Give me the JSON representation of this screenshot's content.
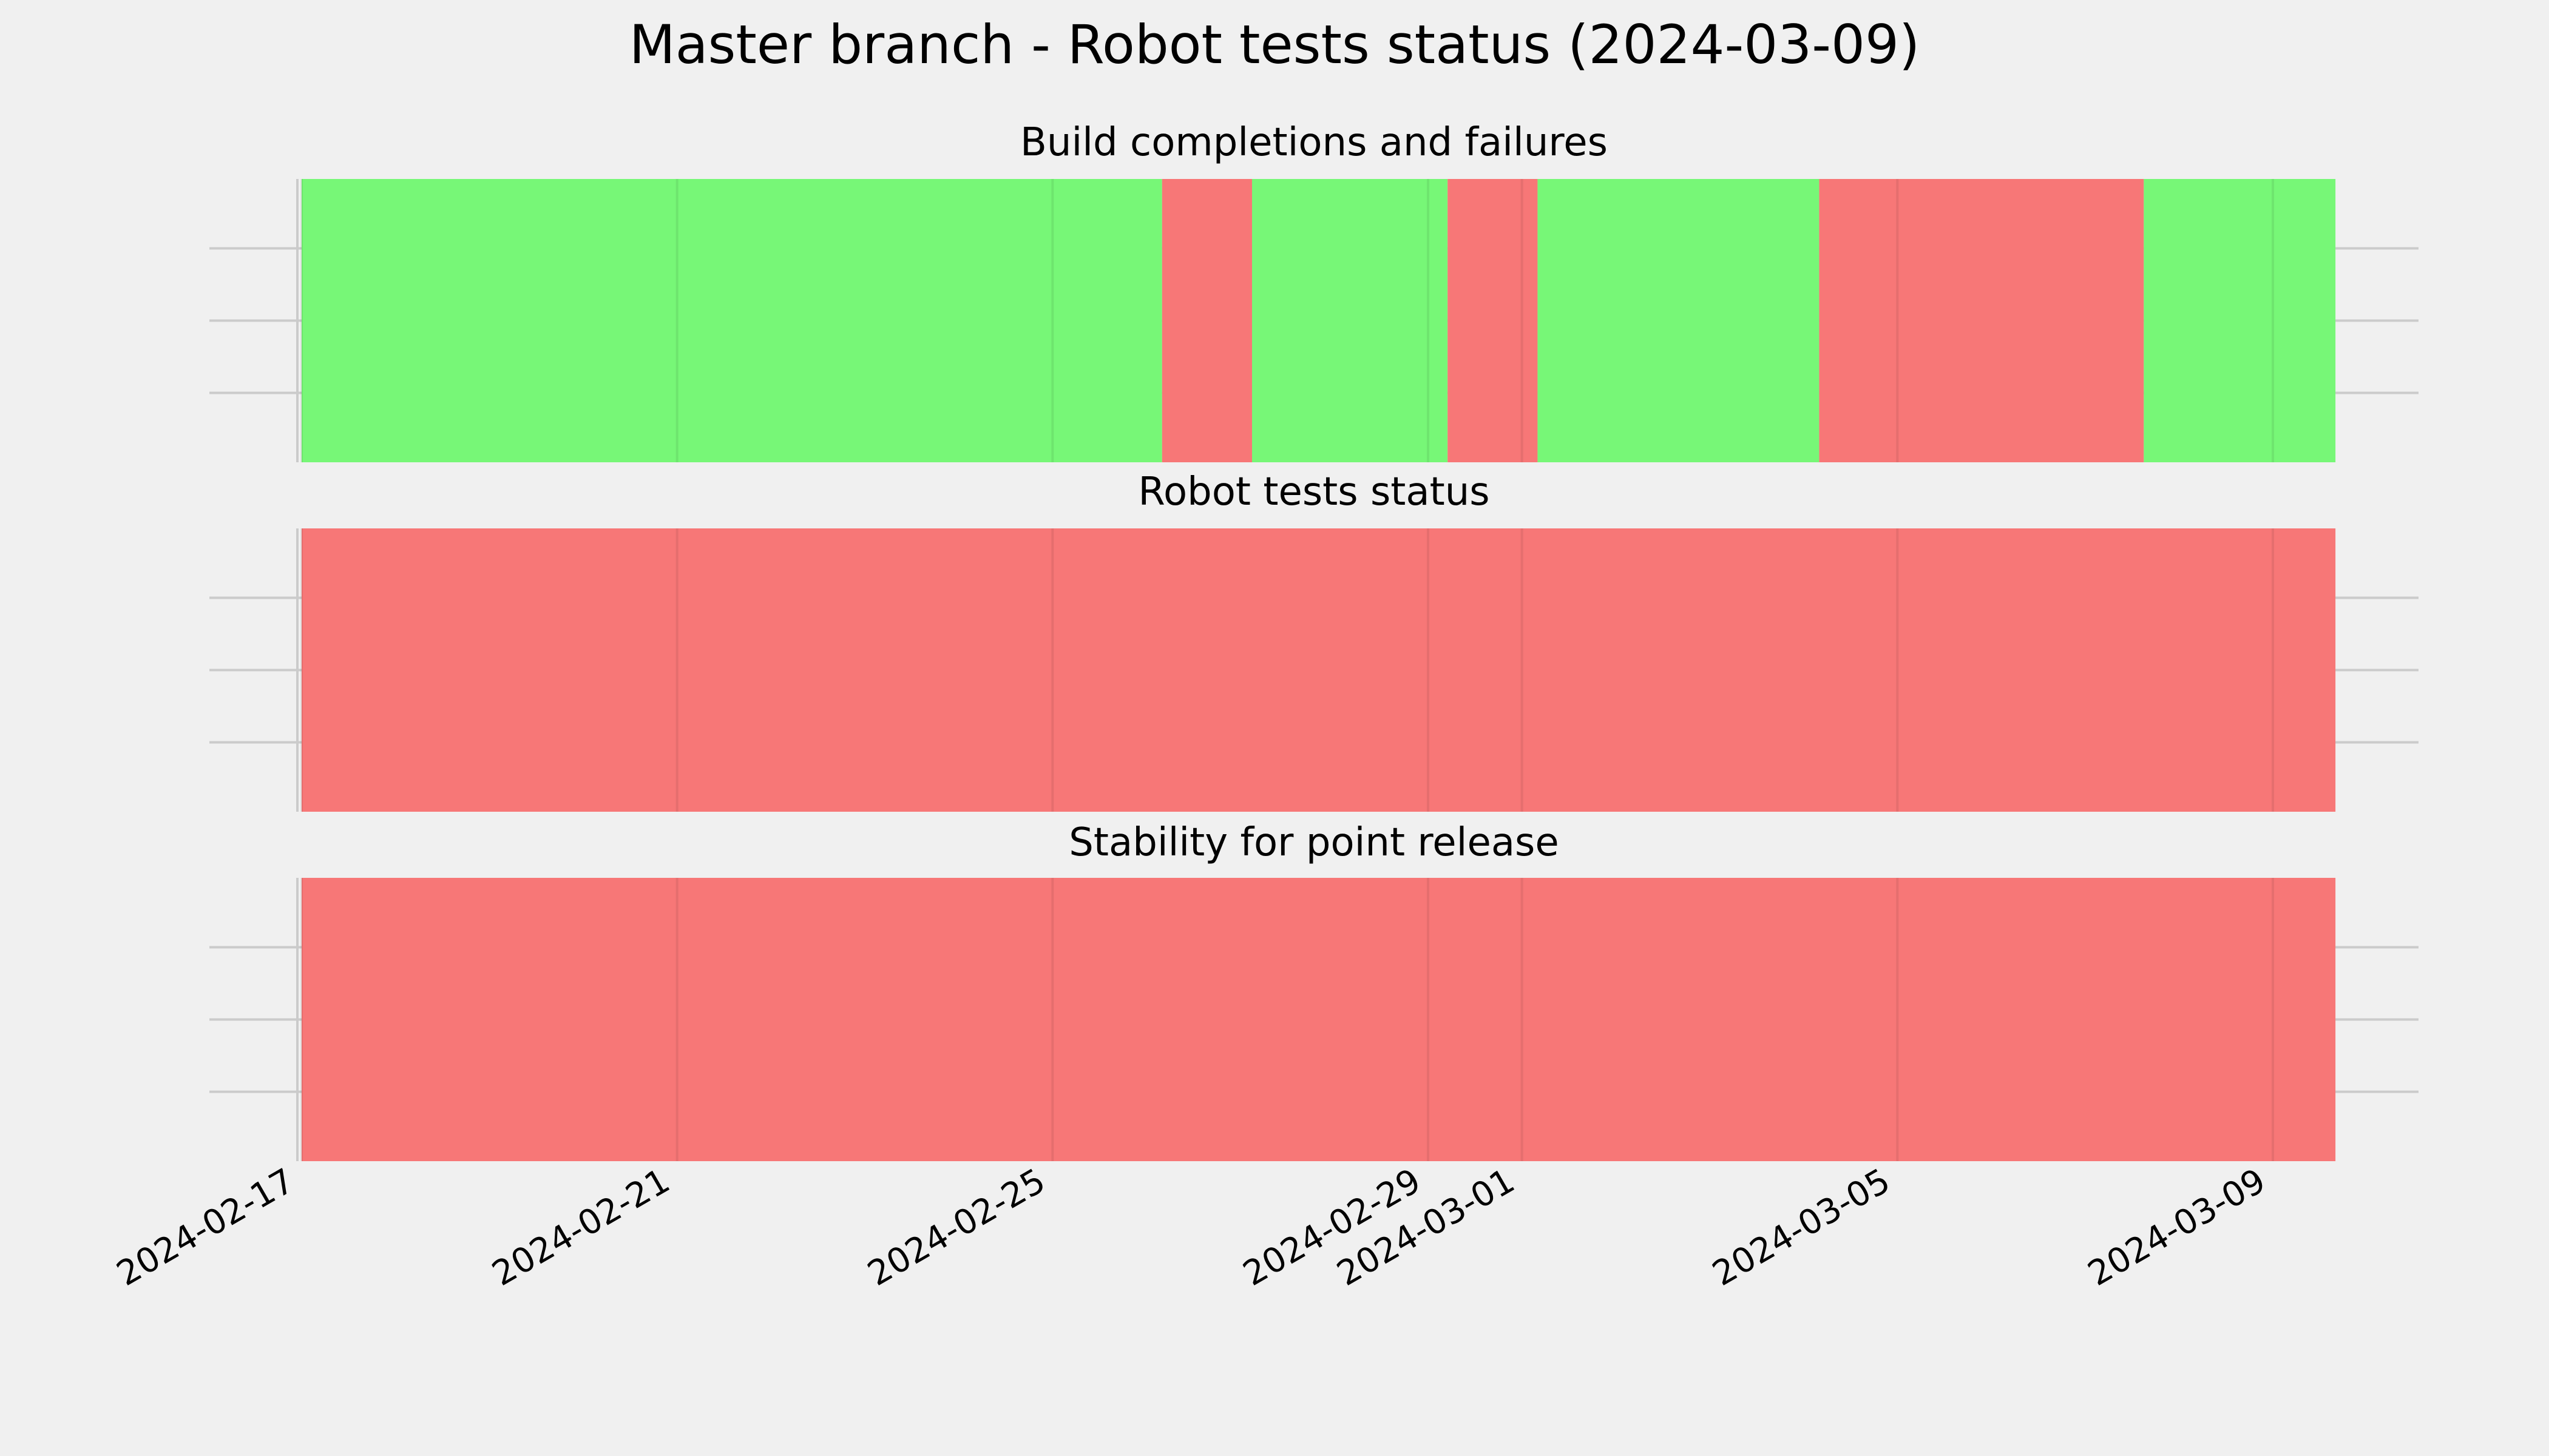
{
  "chart_data": {
    "type": "status-timeline",
    "title": "Master branch - Robot tests status (2024-03-09)",
    "x_range": [
      "2024-02-17",
      "2024-03-10T12:00"
    ],
    "x_ticks": [
      "2024-02-17",
      "2024-02-21",
      "2024-02-25",
      "2024-02-29",
      "2024-03-01",
      "2024-03-05",
      "2024-03-09"
    ],
    "grid": true,
    "colors": {
      "pass": "#77f777",
      "fail": "#f77777"
    },
    "panels": [
      {
        "title": "Build completions and failures",
        "segments": [
          {
            "start": "2024-02-17T00:00",
            "end": "2024-02-26T04:00",
            "status": "pass"
          },
          {
            "start": "2024-02-26T04:00",
            "end": "2024-02-27T03:00",
            "status": "fail"
          },
          {
            "start": "2024-02-27T03:00",
            "end": "2024-02-29T05:00",
            "status": "pass"
          },
          {
            "start": "2024-02-29T05:00",
            "end": "2024-03-01T04:00",
            "status": "fail"
          },
          {
            "start": "2024-03-01T04:00",
            "end": "2024-03-04T04:00",
            "status": "pass"
          },
          {
            "start": "2024-03-04T04:00",
            "end": "2024-03-07T15:00",
            "status": "fail"
          },
          {
            "start": "2024-03-07T15:00",
            "end": "2024-03-09T16:00",
            "status": "pass"
          }
        ]
      },
      {
        "title": "Robot tests status",
        "segments": [
          {
            "start": "2024-02-17T00:00",
            "end": "2024-03-09T16:00",
            "status": "fail"
          }
        ]
      },
      {
        "title": "Stability for point release",
        "segments": [
          {
            "start": "2024-02-17T00:00",
            "end": "2024-03-09T16:00",
            "status": "fail"
          }
        ]
      }
    ]
  }
}
